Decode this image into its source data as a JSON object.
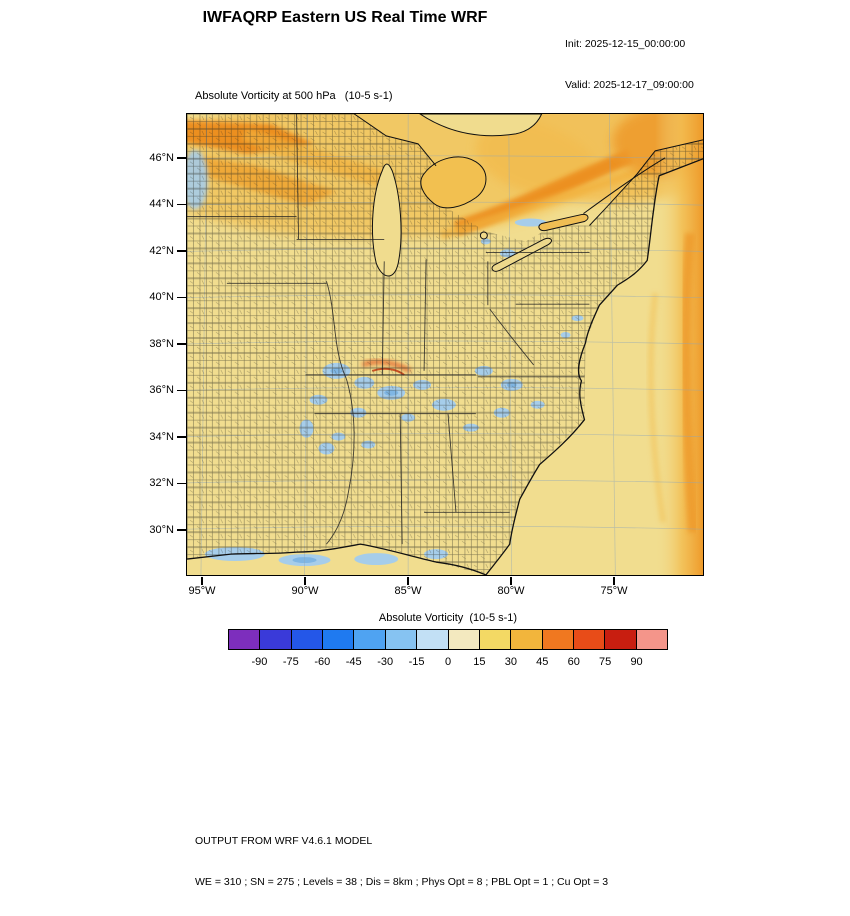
{
  "header": {
    "title": "IWFAQRP Eastern US Real Time WRF",
    "init_label": "Init: 2025-12-15_00:00:00",
    "valid_label": "Valid: 2025-12-17_09:00:00"
  },
  "plot": {
    "field_title": "Absolute Vorticity at 500 hPa   (10-5 s-1)",
    "y_ticks": [
      "46°N",
      "44°N",
      "42°N",
      "40°N",
      "38°N",
      "36°N",
      "34°N",
      "32°N",
      "30°N"
    ],
    "x_ticks": [
      "95°W",
      "90°W",
      "85°W",
      "80°W",
      "75°W"
    ]
  },
  "colorbar": {
    "label": "Absolute Vorticity  (10-5 s-1)",
    "tick_labels": [
      "-90",
      "-75",
      "-60",
      "-45",
      "-30",
      "-15",
      "0",
      "15",
      "30",
      "45",
      "60",
      "75",
      "90"
    ],
    "colors": [
      "#7D2EBD",
      "#3A3AD9",
      "#2457E8",
      "#1F7AF0",
      "#4FA3F2",
      "#86C3F2",
      "#C2E0F5",
      "#F3E9BF",
      "#F3D964",
      "#F2B53C",
      "#F07820",
      "#E84C18",
      "#C81E10",
      "#F4958A"
    ]
  },
  "map_colors": {
    "base_field": "#F1DD8F",
    "orange_band": "#EE9A2A",
    "orange_bright": "#EC8C1E",
    "orange_light": "#F2C35A",
    "negative_patch_blue": "#A6CDEA",
    "negative_patch_blue_deep": "#7FB6E4",
    "boundary_black": "#111111"
  },
  "footer": {
    "line1": "OUTPUT FROM WRF V4.6.1 MODEL",
    "line2": "WE = 310 ; SN = 275 ; Levels = 38 ; Dis = 8km ; Phys Opt = 8 ; PBL Opt = 1 ; Cu Opt = 3"
  },
  "chart_data": {
    "type": "heatmap",
    "title": "Absolute Vorticity at 500 hPa (10-5 s-1)",
    "subtitle": "IWFAQRP Eastern US Real Time WRF",
    "init_time": "2025-12-15_00:00:00",
    "valid_time": "2025-12-17_09:00:00",
    "projection": "Eastern United States map with county outlines, Great Lakes and Atlantic coastline",
    "x_axis": {
      "tick_labels": [
        "95°W",
        "90°W",
        "85°W",
        "80°W",
        "75°W"
      ],
      "approx_range": [
        "96°W",
        "70.5°W"
      ]
    },
    "y_axis": {
      "tick_labels": [
        "46°N",
        "44°N",
        "42°N",
        "40°N",
        "38°N",
        "36°N",
        "34°N",
        "32°N",
        "30°N"
      ],
      "approx_range": [
        "28.5°N",
        "47.8°N"
      ]
    },
    "colorbar": {
      "label": "Absolute Vorticity  (10-5 s-1)",
      "units": "10-5 s-1",
      "levels": [
        -105,
        -90,
        -75,
        -60,
        -45,
        -30,
        -15,
        0,
        15,
        30,
        45,
        60,
        75,
        90,
        105
      ],
      "tick_labels": [
        "-90",
        "-75",
        "-60",
        "-45",
        "-30",
        "-15",
        "0",
        "15",
        "30",
        "45",
        "60",
        "75",
        "90"
      ],
      "colors": [
        "#7D2EBD",
        "#3A3AD9",
        "#2457E8",
        "#1F7AF0",
        "#4FA3F2",
        "#86C3F2",
        "#C2E0F5",
        "#F3E9BF",
        "#F3D964",
        "#F2B53C",
        "#F07820",
        "#E84C18",
        "#C81E10",
        "#F4958A"
      ],
      "legend_position": "bottom"
    },
    "field_summary": [
      {
        "region": "most of the domain (background)",
        "approx_value_range": [
          5,
          20
        ]
      },
      {
        "region": "bright diagonal band in northwest corner (upper Mississippi valley)",
        "approx_value_range": [
          30,
          60
        ]
      },
      {
        "region": "band over Wisconsin/Michigan and arc over Lakes Huron-Ontario into the St. Lawrence valley",
        "approx_value_range": [
          30,
          55
        ]
      },
      {
        "region": "Atlantic band along the eastern edge of the domain",
        "approx_value_range": [
          25,
          50
        ]
      },
      {
        "region": "small orange-red filament over Tennessee",
        "approx_value_range": [
          30,
          60
        ]
      },
      {
        "region": "scattered cyan patches over Tennessee/Kentucky/Virginia/Carolinas and along the Gulf coast",
        "approx_value_range": [
          -15,
          0
        ]
      }
    ],
    "grid": true
  }
}
